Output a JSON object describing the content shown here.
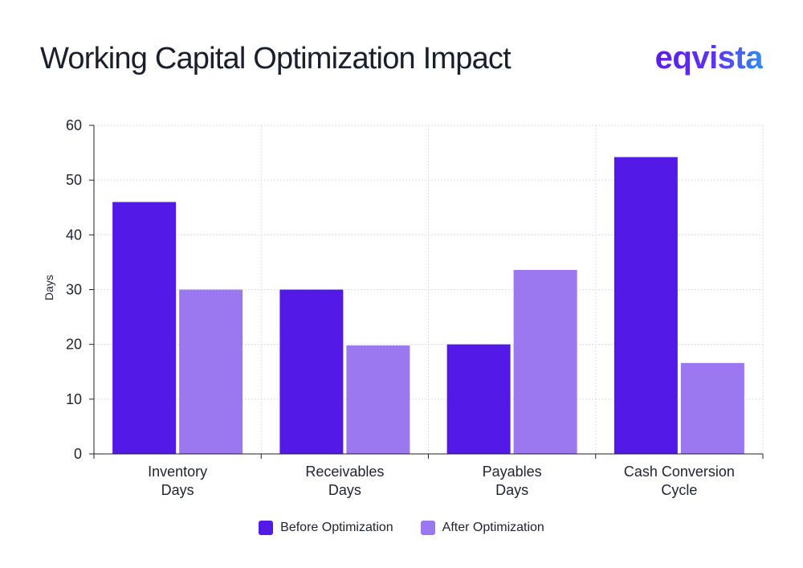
{
  "header": {
    "title": "Working Capital Optimization Impact",
    "brand": "eqvista"
  },
  "colors": {
    "before": "#5319e7",
    "after": "#9b78ef"
  },
  "chart_data": {
    "type": "bar",
    "title": "Working Capital Optimization Impact",
    "xlabel": "",
    "ylabel": "Days",
    "ylim": [
      0,
      60
    ],
    "yticks": [
      0,
      10,
      20,
      30,
      40,
      50,
      60
    ],
    "grid": true,
    "legend_position": "bottom-center",
    "categories": [
      [
        "Inventory",
        "Days"
      ],
      [
        "Receivables",
        "Days"
      ],
      [
        "Payables",
        "Days"
      ],
      [
        "Cash Conversion",
        "Cycle"
      ]
    ],
    "series": [
      {
        "name": "Before Optimization",
        "values": [
          46,
          30,
          20,
          54.2
        ]
      },
      {
        "name": "After Optimization",
        "values": [
          30,
          19.8,
          33.6,
          16.6
        ]
      }
    ]
  }
}
